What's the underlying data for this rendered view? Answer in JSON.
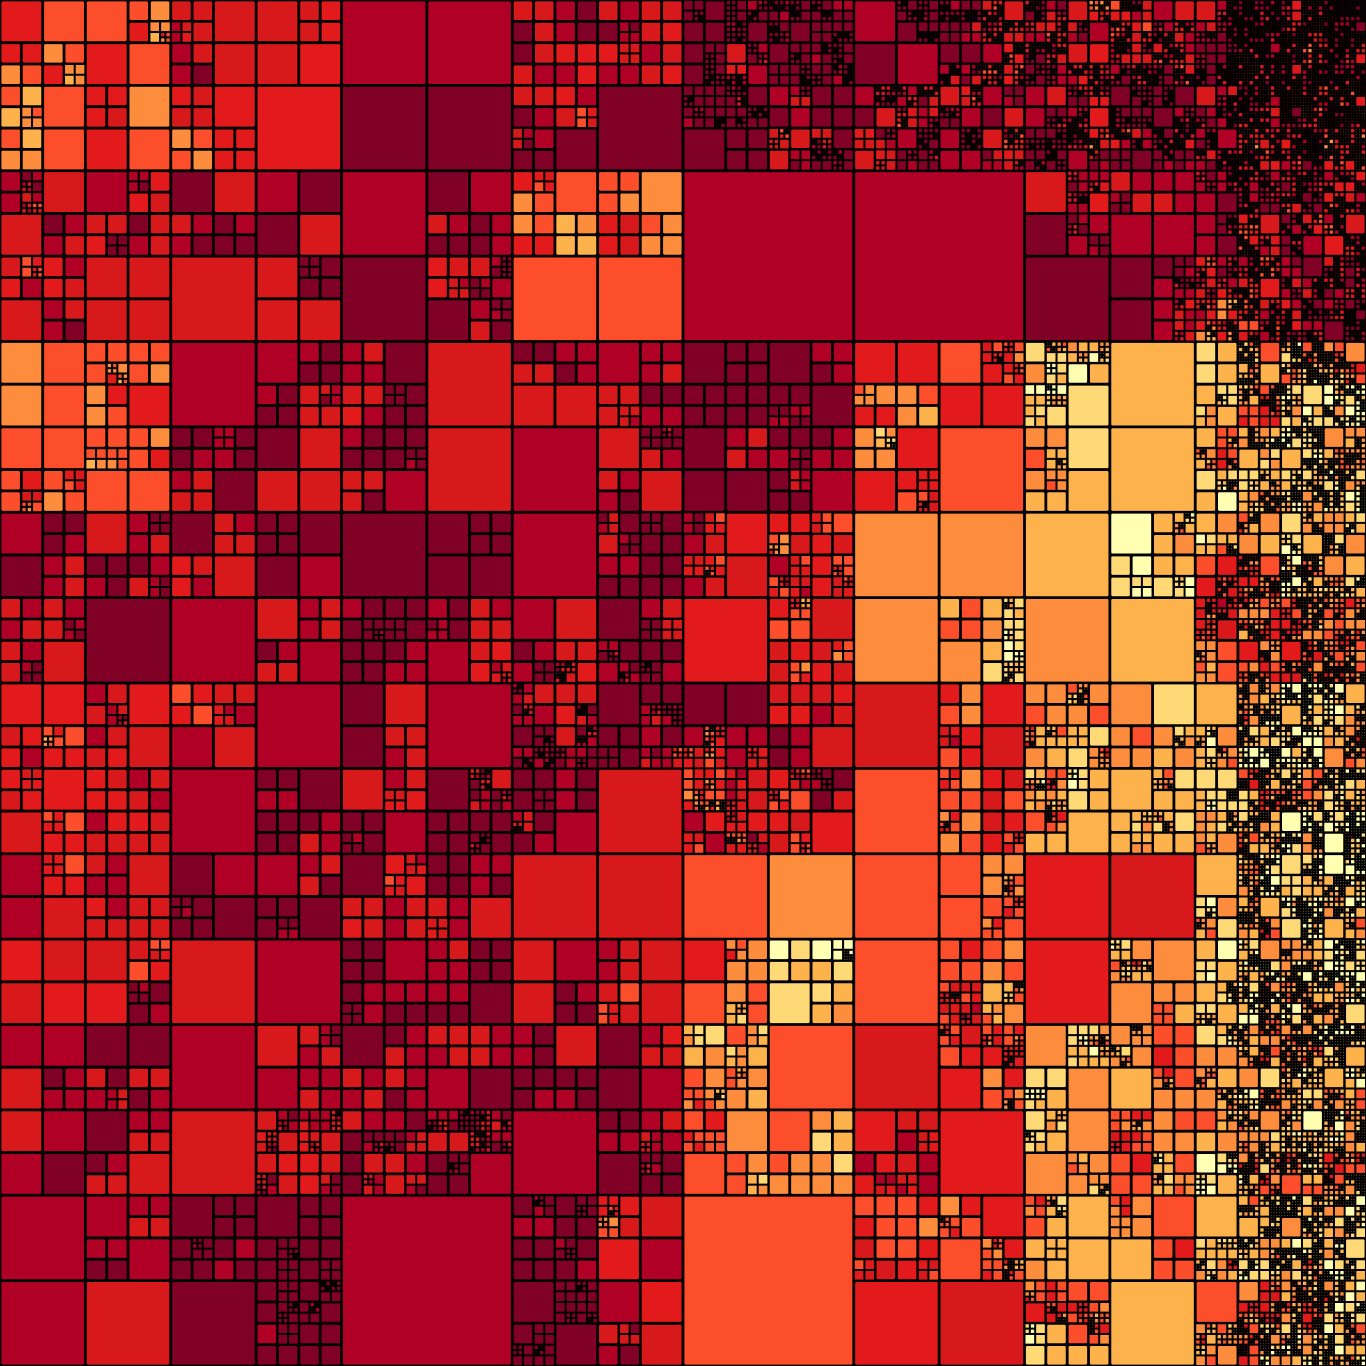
{
  "mosaic": {
    "palette": [
      "#800026",
      "#b10026",
      "#d7191c",
      "#e31a1c",
      "#fc4e2a",
      "#fd8d3c",
      "#feb24c",
      "#fed976",
      "#ffffb2"
    ],
    "border_color": "#000000",
    "min_cell_level": 6,
    "root_levels": [
      [
        2,
        1,
        1,
        1,
        1,
        1,
        0,
        0
      ],
      [
        2,
        1,
        1,
        1,
        0,
        0,
        0,
        0
      ],
      [
        2,
        1,
        1,
        1,
        1,
        1,
        1,
        0
      ],
      [
        1,
        1,
        1,
        1,
        1,
        1,
        1,
        0
      ],
      [
        2,
        1,
        1,
        1,
        1,
        1,
        1,
        0
      ],
      [
        2,
        1,
        1,
        1,
        1,
        1,
        1,
        1
      ],
      [
        2,
        1,
        1,
        1,
        1,
        1,
        1,
        1
      ],
      [
        1,
        1,
        0,
        0,
        0,
        1,
        1,
        1
      ]
    ],
    "root_colors": [
      [
        4,
        2,
        1,
        1,
        0,
        1,
        1,
        1
      ],
      [
        2,
        1,
        1,
        4,
        1,
        1,
        1,
        1
      ],
      [
        4,
        1,
        1,
        1,
        0,
        4,
        6,
        5
      ],
      [
        1,
        1,
        0,
        1,
        3,
        5,
        6,
        5
      ],
      [
        2,
        1,
        1,
        1,
        2,
        3,
        6,
        6
      ],
      [
        2,
        1,
        1,
        2,
        5,
        4,
        3,
        6
      ],
      [
        1,
        1,
        1,
        1,
        5,
        3,
        5,
        6
      ],
      [
        1,
        0,
        1,
        1,
        4,
        3,
        5,
        6
      ]
    ]
  }
}
